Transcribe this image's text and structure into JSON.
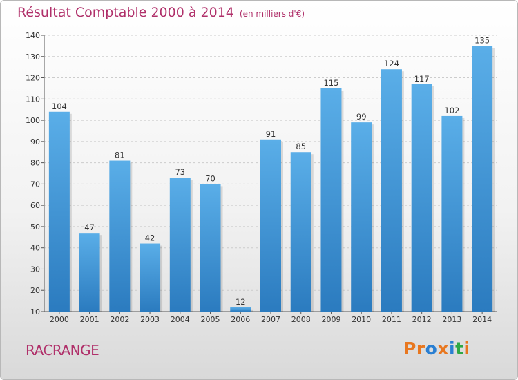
{
  "header": {
    "title": "Résultat Comptable 2000 à 2014",
    "subtitle": "(en milliers d'€)"
  },
  "footer": {
    "commune": "RACRANGE",
    "logo_text": "Proxiti",
    "logo_colors": [
      "#e8771f",
      "#e8771f",
      "#2a7fd2",
      "#e8771f",
      "#2a7fd2",
      "#2fa845",
      "#e8771f"
    ]
  },
  "colors": {
    "title": "#b0306a",
    "bar_light": "#5aaee8",
    "bar_dark": "#2b7bbf",
    "axis": "#555555",
    "grid": "#cccccc"
  },
  "chart_data": {
    "type": "bar",
    "title": "Résultat Comptable 2000 à 2014",
    "subtitle": "(en milliers d'€)",
    "categories": [
      "2000",
      "2001",
      "2002",
      "2003",
      "2004",
      "2005",
      "2006",
      "2007",
      "2008",
      "2009",
      "2010",
      "2011",
      "2012",
      "2013",
      "2014"
    ],
    "values": [
      104,
      47,
      81,
      42,
      73,
      70,
      12,
      91,
      85,
      115,
      99,
      124,
      117,
      102,
      135
    ],
    "ylim": [
      10,
      140
    ],
    "yticks": [
      10,
      20,
      30,
      40,
      50,
      60,
      70,
      80,
      90,
      100,
      110,
      120,
      130,
      140
    ],
    "grid": "horizontal dashed",
    "legend": "none"
  }
}
